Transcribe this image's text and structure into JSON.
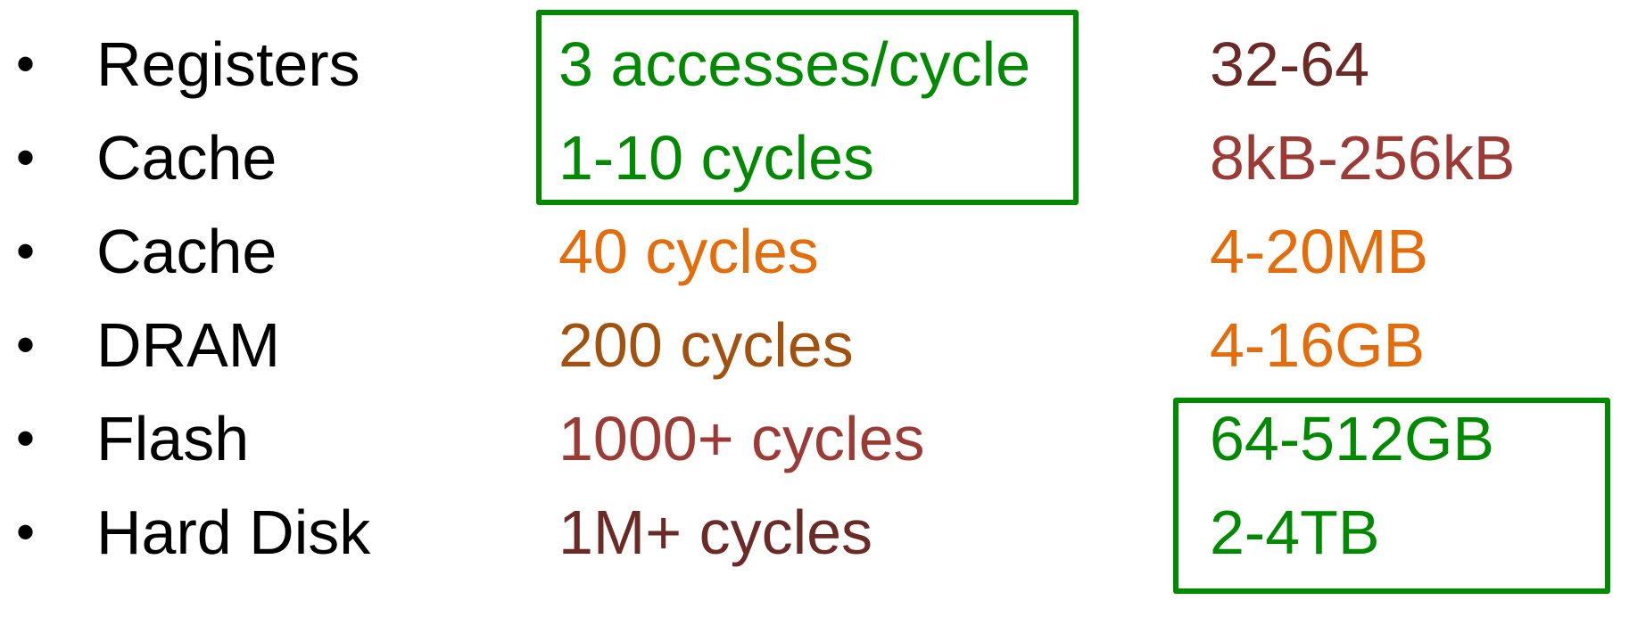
{
  "colors": {
    "black": "#000000",
    "green": "#008a00",
    "dark_red": "#6b2a25",
    "red": "#9c3a35",
    "orange": "#e46c0a",
    "brown": "#a0520e"
  },
  "rows": [
    {
      "bullet": "•",
      "name": "Registers",
      "latency": "3 accesses/cycle",
      "size": "32-64"
    },
    {
      "bullet": "•",
      "name": "Cache",
      "latency": "1-10 cycles",
      "size": "8kB-256kB"
    },
    {
      "bullet": "•",
      "name": "Cache",
      "latency": "40 cycles",
      "size": "4-20MB"
    },
    {
      "bullet": "•",
      "name": "DRAM",
      "latency": "200 cycles",
      "size": "4-16GB"
    },
    {
      "bullet": "•",
      "name": "Flash",
      "latency": "1000+ cycles",
      "size": "64-512GB"
    },
    {
      "bullet": "•",
      "name": "Hard Disk",
      "latency": "1M+ cycles",
      "size": "2-4TB"
    }
  ]
}
